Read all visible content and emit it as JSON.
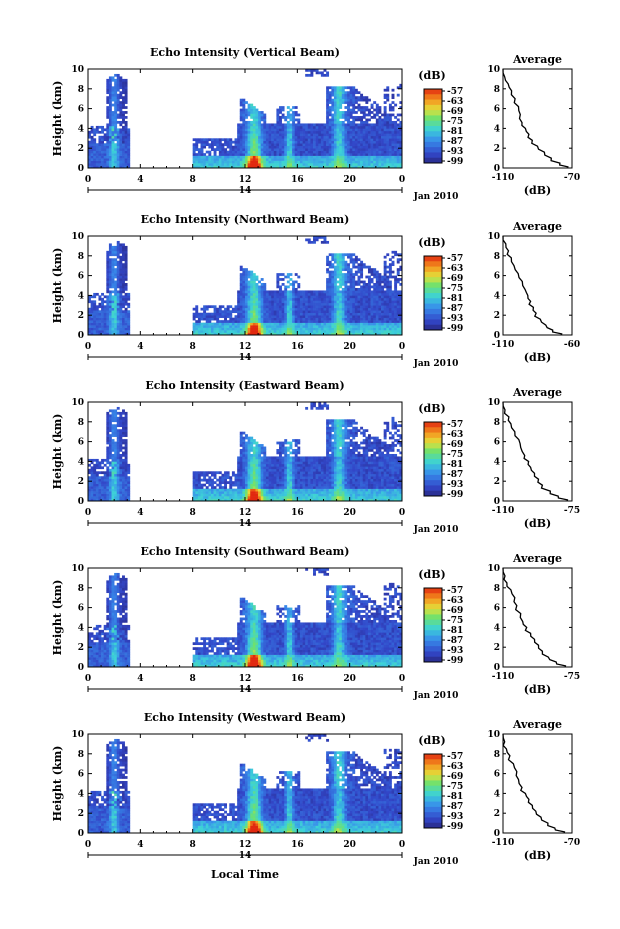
{
  "figure": {
    "x_axis_label": "Local Time",
    "date_label": "Jan 2010",
    "day_label": "14",
    "x_ticks": [
      "0",
      "4",
      "8",
      "12",
      "16",
      "20",
      "0"
    ],
    "y_axis_label": "Height (km)",
    "y_ticks": [
      "0",
      "2",
      "4",
      "6",
      "8",
      "10"
    ],
    "colorbar_unit": "(dB)",
    "colorbar_ticks": [
      "-57",
      "-63",
      "-69",
      "-75",
      "-81",
      "-87",
      "-93",
      "-99"
    ],
    "avg_title": "Average",
    "avg_unit": "(dB)"
  },
  "chart_data": [
    {
      "type": "heatmap",
      "title": "Echo Intensity (Vertical Beam)",
      "xlabel": "",
      "ylabel": "Height (km)",
      "xlim": [
        0,
        24
      ],
      "ylim": [
        0,
        10
      ],
      "color_range_db": [
        -99,
        -57
      ],
      "colormap": [
        "#2a2a8a",
        "#3550c8",
        "#3aa0e8",
        "#40d8d0",
        "#80e060",
        "#e0e040",
        "#f0a020",
        "#e03010"
      ],
      "features": [
        {
          "hour_start": 0,
          "hour_end": 3.2,
          "top_km": 9.5,
          "note": "cloud column near 2h"
        },
        {
          "hour_start": 8,
          "hour_end": 23.5,
          "top_km": 10,
          "note": "precipitation bands near 12-13h, 15h, 19h"
        }
      ]
    },
    {
      "type": "line",
      "title": "Average",
      "xlabel": "(dB)",
      "ylabel": "",
      "xlim": [
        -110,
        -70
      ],
      "ylim": [
        0,
        10
      ],
      "x_tick_labels": [
        "-110",
        "-70"
      ],
      "series": [
        {
          "x": [
            -110,
            -109,
            -107,
            -105,
            -103,
            -101,
            -100,
            -99,
            -97,
            -95,
            -93,
            -90,
            -86,
            -82,
            -77,
            -72
          ],
          "y": [
            10,
            9.2,
            8.5,
            7.8,
            7.0,
            6.2,
            5.4,
            4.6,
            4.0,
            3.4,
            2.8,
            2.2,
            1.6,
            1.0,
            0.5,
            0.1
          ]
        }
      ]
    },
    {
      "type": "heatmap",
      "title": "Echo Intensity (Northward Beam)",
      "xlabel": "",
      "ylabel": "Height (km)",
      "xlim": [
        0,
        24
      ],
      "ylim": [
        0,
        10
      ],
      "color_range_db": [
        -99,
        -57
      ]
    },
    {
      "type": "line",
      "title": "Average",
      "xlabel": "(dB)",
      "ylabel": "",
      "xlim": [
        -110,
        -60
      ],
      "ylim": [
        0,
        10
      ],
      "x_tick_labels": [
        "-110",
        "-60"
      ],
      "series": [
        {
          "x": [
            -110,
            -108,
            -106,
            -104,
            -102,
            -99,
            -96,
            -94,
            -92,
            -90,
            -88,
            -86,
            -83,
            -79,
            -74,
            -67
          ],
          "y": [
            10,
            9.2,
            8.5,
            7.8,
            7.0,
            6.2,
            5.4,
            4.6,
            4.0,
            3.4,
            2.8,
            2.2,
            1.6,
            1.0,
            0.5,
            0.1
          ]
        }
      ]
    },
    {
      "type": "heatmap",
      "title": "Echo Intensity (Eastward Beam)",
      "xlabel": "",
      "ylabel": "Height (km)",
      "xlim": [
        0,
        24
      ],
      "ylim": [
        0,
        10
      ],
      "color_range_db": [
        -99,
        -57
      ]
    },
    {
      "type": "line",
      "title": "Average",
      "xlabel": "(dB)",
      "ylabel": "",
      "xlim": [
        -110,
        -75
      ],
      "ylim": [
        0,
        10
      ],
      "x_tick_labels": [
        "-110",
        "-75"
      ],
      "series": [
        {
          "x": [
            -110,
            -109,
            -107,
            -106,
            -104,
            -102,
            -101,
            -99,
            -97,
            -96,
            -94,
            -92,
            -90,
            -86,
            -82,
            -77
          ],
          "y": [
            10,
            9.2,
            8.5,
            7.8,
            7.0,
            6.2,
            5.4,
            4.6,
            4.0,
            3.4,
            2.8,
            2.2,
            1.6,
            1.0,
            0.5,
            0.1
          ]
        }
      ]
    },
    {
      "type": "heatmap",
      "title": "Echo Intensity (Southward Beam)",
      "xlabel": "",
      "ylabel": "Height (km)",
      "xlim": [
        0,
        24
      ],
      "ylim": [
        0,
        10
      ],
      "color_range_db": [
        -99,
        -57
      ]
    },
    {
      "type": "line",
      "title": "Average",
      "xlabel": "(dB)",
      "ylabel": "",
      "xlim": [
        -110,
        -75
      ],
      "ylim": [
        0,
        10
      ],
      "x_tick_labels": [
        "-110",
        "-75"
      ],
      "series": [
        {
          "x": [
            -110,
            -109,
            -108,
            -106,
            -104,
            -103,
            -101,
            -100,
            -98,
            -96,
            -94,
            -92,
            -90,
            -87,
            -83,
            -78
          ],
          "y": [
            10,
            9.2,
            8.5,
            7.8,
            7.0,
            6.2,
            5.4,
            4.6,
            4.0,
            3.4,
            2.8,
            2.2,
            1.6,
            1.0,
            0.5,
            0.1
          ]
        }
      ]
    },
    {
      "type": "heatmap",
      "title": "Echo Intensity (Westward Beam)",
      "xlabel": "",
      "ylabel": "Height (km)",
      "xlim": [
        0,
        24
      ],
      "ylim": [
        0,
        10
      ],
      "color_range_db": [
        -99,
        -57
      ]
    },
    {
      "type": "line",
      "title": "Average",
      "xlabel": "(dB)",
      "ylabel": "",
      "xlim": [
        -110,
        -70
      ],
      "ylim": [
        0,
        10
      ],
      "x_tick_labels": [
        "-110",
        "-70"
      ],
      "series": [
        {
          "x": [
            -110,
            -109,
            -108,
            -106,
            -104,
            -102,
            -101,
            -99,
            -97,
            -95,
            -93,
            -91,
            -88,
            -84,
            -80,
            -74
          ],
          "y": [
            10,
            9.2,
            8.5,
            7.8,
            7.0,
            6.2,
            5.4,
            4.6,
            4.0,
            3.4,
            2.8,
            2.2,
            1.6,
            1.0,
            0.5,
            0.1
          ]
        }
      ]
    }
  ]
}
